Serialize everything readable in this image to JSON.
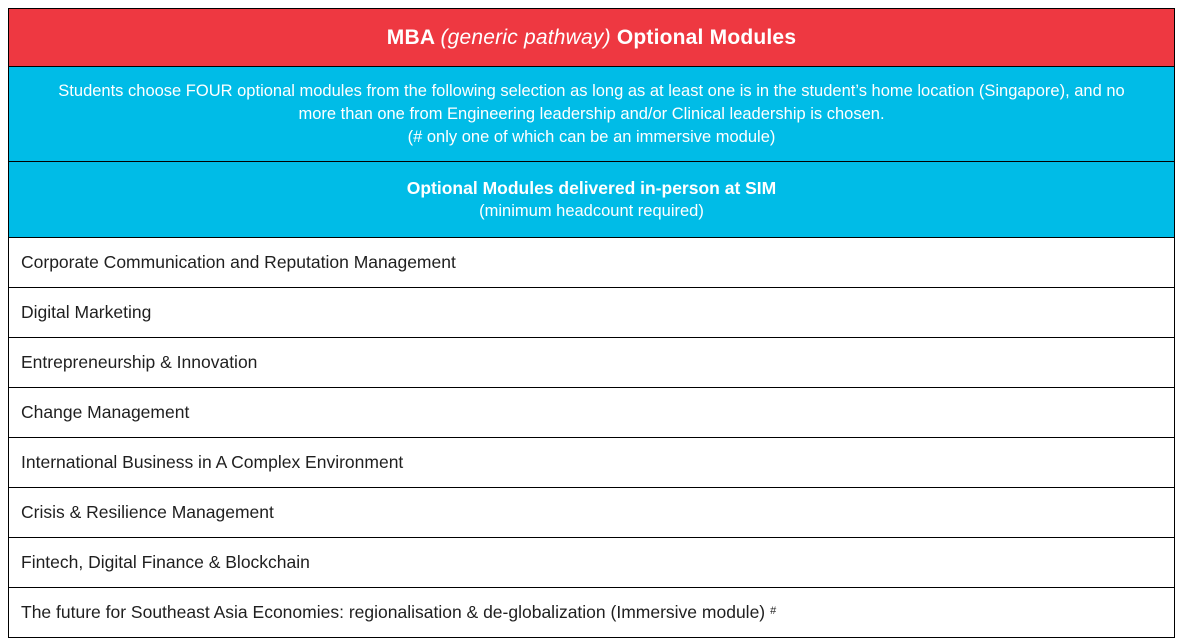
{
  "header": {
    "title_bold_prefix": "MBA ",
    "title_italic": "(generic pathway)",
    "title_bold_suffix": " Optional Modules"
  },
  "instructions": {
    "line1": "Students choose FOUR optional modules from the following selection as long as at least one is in the student’s home location (Singapore), and no more than one from Engineering leadership and/or Clinical leadership is chosen.",
    "line2": "(# only one of which can be an immersive module)"
  },
  "section": {
    "title": "Optional Modules delivered in-person at SIM",
    "subtitle": "(minimum headcount required)"
  },
  "modules": [
    {
      "label": "Corporate Communication and Reputation Management",
      "marker": ""
    },
    {
      "label": "Digital Marketing",
      "marker": ""
    },
    {
      "label": "Entrepreneurship & Innovation",
      "marker": ""
    },
    {
      "label": "Change Management",
      "marker": ""
    },
    {
      "label": "International Business in A Complex Environment",
      "marker": ""
    },
    {
      "label": "Crisis & Resilience Management",
      "marker": ""
    },
    {
      "label": "Fintech, Digital Finance & Blockchain",
      "marker": ""
    },
    {
      "label": "The future for Southeast Asia Economies: regionalisation & de-globalization (Immersive module)",
      "marker": "#"
    }
  ],
  "colors": {
    "header_red": "#EE3841",
    "cyan": "#00BCE7",
    "border": "#000000",
    "row_text": "#1F1F1F",
    "header_text": "#FFFFFF"
  }
}
